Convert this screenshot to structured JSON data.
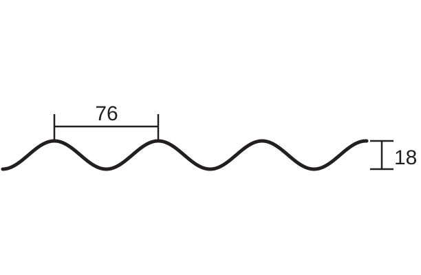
{
  "diagram": {
    "pitch_label": "76",
    "height_label": "18",
    "pitch_value": 76,
    "height_value": 18,
    "line_color": "#231f20",
    "background_color": "#ffffff"
  }
}
